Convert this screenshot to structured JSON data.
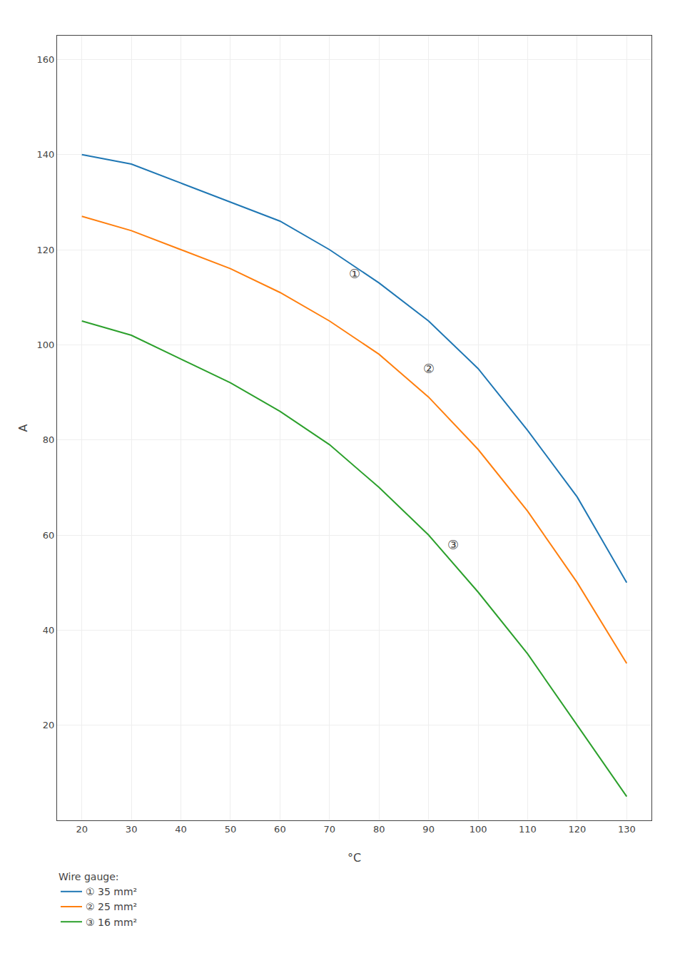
{
  "chart_data": {
    "type": "line",
    "x_label": "°C",
    "y_label": "A",
    "x": [
      20,
      30,
      40,
      50,
      60,
      70,
      80,
      90,
      100,
      110,
      120,
      130
    ],
    "series": [
      {
        "name": "① 35 mm²",
        "values": [
          140,
          138,
          134,
          130,
          126,
          120,
          113,
          105,
          95,
          82,
          68,
          50
        ]
      },
      {
        "name": "② 25 mm²",
        "values": [
          127,
          124,
          120,
          116,
          111,
          105,
          98,
          89,
          78,
          65,
          50,
          33
        ]
      },
      {
        "name": "③ 16 mm²",
        "values": [
          105,
          102,
          97,
          92,
          86,
          79,
          70,
          60,
          48,
          35,
          20,
          5
        ]
      }
    ],
    "xlim": [
      15,
      135
    ],
    "xticks": [
      20,
      30,
      40,
      50,
      60,
      70,
      80,
      90,
      100,
      110,
      120,
      130
    ],
    "ylim": [
      0,
      165
    ],
    "yticks": [
      20,
      40,
      60,
      80,
      100,
      120,
      140,
      160
    ],
    "grid": true,
    "legend": "bottom",
    "legend_title": "Wire gauge:",
    "annotations": [
      {
        "text": "①",
        "x": 75,
        "y": 115
      },
      {
        "text": "②",
        "x": 90,
        "y": 95
      },
      {
        "text": "③",
        "x": 95,
        "y": 58
      }
    ]
  }
}
